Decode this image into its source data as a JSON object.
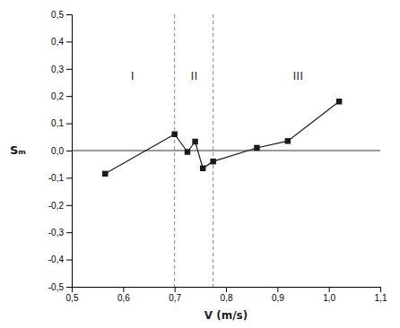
{
  "chart_data": {
    "type": "line",
    "x": [
      0.565,
      0.7,
      0.725,
      0.74,
      0.755,
      0.775,
      0.86,
      0.92,
      1.02
    ],
    "values": [
      -0.085,
      0.06,
      -0.005,
      0.033,
      -0.065,
      -0.04,
      0.01,
      0.035,
      0.18
    ],
    "color": "#1a1a1a",
    "marker": "square",
    "line_style": "solid",
    "grid": false,
    "xlabel": "V (m/s)",
    "ylabel": "Sₘ",
    "xlim": [
      0.5,
      1.1
    ],
    "ylim": [
      -0.5,
      0.5
    ],
    "xticks": [
      {
        "value": 0.5,
        "label": "0,5"
      },
      {
        "value": 0.6,
        "label": "0,6"
      },
      {
        "value": 0.7,
        "label": "0,7"
      },
      {
        "value": 0.8,
        "label": "0,8"
      },
      {
        "value": 0.9,
        "label": "0,9"
      },
      {
        "value": 1.0,
        "label": "1,0"
      },
      {
        "value": 1.1,
        "label": "1,1"
      }
    ],
    "yticks": [
      {
        "value": -0.5,
        "label": "-0,5"
      },
      {
        "value": -0.4,
        "label": "-0,4"
      },
      {
        "value": -0.3,
        "label": "-0,3"
      },
      {
        "value": -0.2,
        "label": "-0,2"
      },
      {
        "value": -0.1,
        "label": "-0,1"
      },
      {
        "value": 0.0,
        "label": "0,0"
      },
      {
        "value": 0.1,
        "label": "0,1"
      },
      {
        "value": 0.2,
        "label": "0,2"
      },
      {
        "value": 0.3,
        "label": "0,3"
      },
      {
        "value": 0.4,
        "label": "0,4"
      },
      {
        "value": 0.5,
        "label": "0,5"
      }
    ],
    "vlines": [
      0.7,
      0.775
    ],
    "hline": 0.0,
    "annotations": [
      {
        "text": "I",
        "x": 0.618,
        "y": 0.27
      },
      {
        "text": "II",
        "x": 0.738,
        "y": 0.27
      },
      {
        "text": "III",
        "x": 0.94,
        "y": 0.27
      }
    ]
  }
}
